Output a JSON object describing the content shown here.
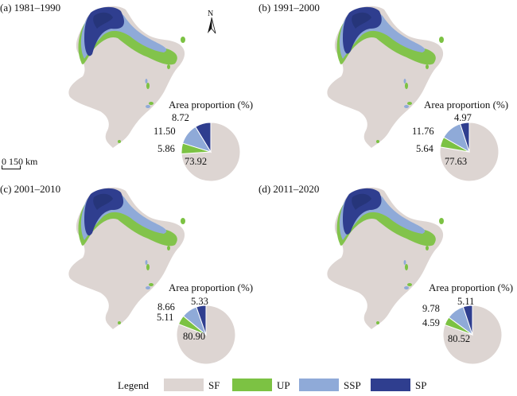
{
  "colors": {
    "SF": "#ddd5d2",
    "UP": "#7cc243",
    "SSP": "#8faad8",
    "SP": "#2f3e8f",
    "SP_dark": "#26357a"
  },
  "north_label": "N",
  "scale_label": "0   150 km",
  "pie_title": "Area proportion (%)",
  "legend": {
    "title": "Legend",
    "items": [
      {
        "key": "SF",
        "label": "SF"
      },
      {
        "key": "UP",
        "label": "UP"
      },
      {
        "key": "SSP",
        "label": "SSP"
      },
      {
        "key": "SP",
        "label": "SP"
      }
    ]
  },
  "panels": [
    {
      "label": "(a) 1981–1990",
      "SF": "73.92",
      "UP": "5.86",
      "SSP": "11.50",
      "SP": "8.72"
    },
    {
      "label": "(b) 1991–2000",
      "SF": "77.63",
      "UP": "5.64",
      "SSP": "11.76",
      "SP": "4.97"
    },
    {
      "label": "(c) 2001–2010",
      "SF": "80.90",
      "UP": "5.11",
      "SSP": "8.66",
      "SP": "5.33"
    },
    {
      "label": "(d) 2011–2020",
      "SF": "80.52",
      "UP": "4.59",
      "SSP": "9.78",
      "SP": "5.11"
    }
  ]
}
